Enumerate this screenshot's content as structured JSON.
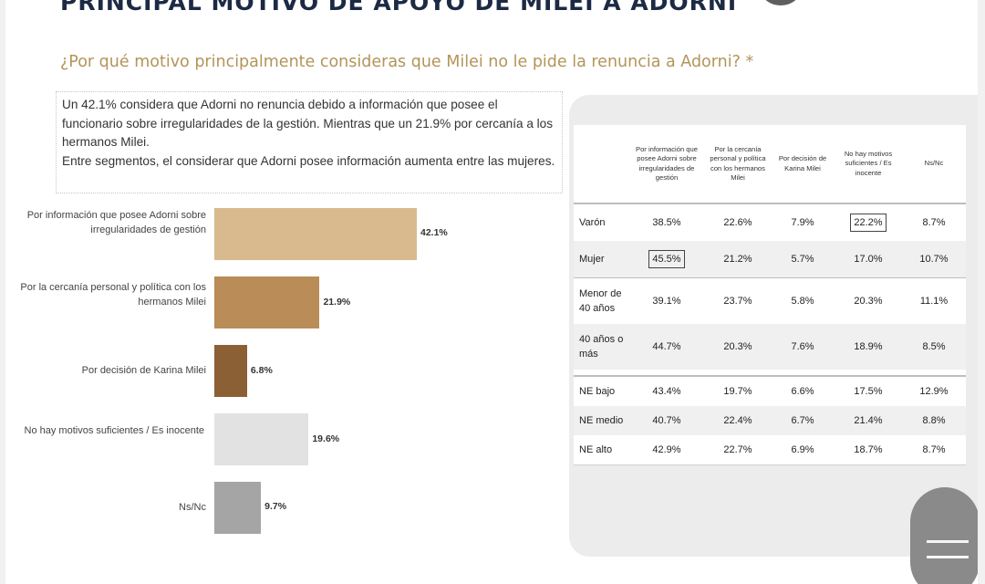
{
  "title": "PRINCIPAL MOTIVO DE APOYO DE MILEI A ADORNI",
  "question": "¿Por qué motivo principalmente consideras que Milei no le pide la renuncia a Adorni? *",
  "summary": [
    "Un 42.1% considera que Adorni no renuncia debido a información que posee el funcionario sobre irregularidades de la gestión. Mientras que un 21.9% por cercanía a los hermanos Milei.",
    "Entre segmentos, el considerar que Adorni posee información aumenta entre las mujeres."
  ],
  "colors": {
    "title": "#1d2a44",
    "question": "#b39459"
  },
  "chart_data": [
    {
      "type": "bar",
      "orientation": "horizontal",
      "categories": [
        "Por información que posee Adorni sobre irregularidades de gestión",
        "Por la cercanía personal y política con los hermanos Milei",
        "Por decisión de Karina Milei",
        "No hay motivos suficientes / Es inocente",
        "Ns/Nc"
      ],
      "values": [
        42.1,
        21.9,
        6.8,
        19.6,
        9.7
      ],
      "value_labels": [
        "42.1%",
        "21.9%",
        "6.8%",
        "19.6%",
        "9.7%"
      ],
      "colors": [
        "#d9b98e",
        "#b98c58",
        "#8b6034",
        "#e2e2e2",
        "#a5a5a5"
      ],
      "xlim": [
        0,
        45
      ]
    },
    {
      "type": "table",
      "columns": [
        "",
        "Por información que posee Adorni sobre irregularidades de gestión",
        "Por la cercanía personal y política con los hermanos Milei",
        "Por decisión de Karina Milei",
        "No hay motivos suficientes / Es inocente",
        "Ns/Nc"
      ],
      "rows": [
        [
          "Varón",
          "38.5%",
          "22.6%",
          "7.9%",
          "22.2%",
          "8.7%"
        ],
        [
          "Mujer",
          "45.5%",
          "21.2%",
          "5.7%",
          "17.0%",
          "10.7%"
        ],
        [
          "Menor de 40 años",
          "39.1%",
          "23.7%",
          "5.8%",
          "20.3%",
          "11.1%"
        ],
        [
          "40 años o más",
          "44.7%",
          "20.3%",
          "7.6%",
          "18.9%",
          "8.5%"
        ],
        [
          "NE bajo",
          "43.4%",
          "19.7%",
          "6.6%",
          "17.5%",
          "12.9%"
        ],
        [
          "NE medio",
          "40.7%",
          "22.4%",
          "6.7%",
          "21.4%",
          "8.8%"
        ],
        [
          "NE alto",
          "42.9%",
          "22.7%",
          "6.9%",
          "18.7%",
          "8.7%"
        ]
      ],
      "highlighted_cells": [
        {
          "row": "Varón",
          "column": "No hay motivos suficientes / Es inocente"
        },
        {
          "row": "Mujer",
          "column": "Por información que posee Adorni sobre irregularidades de gestión"
        }
      ]
    }
  ]
}
